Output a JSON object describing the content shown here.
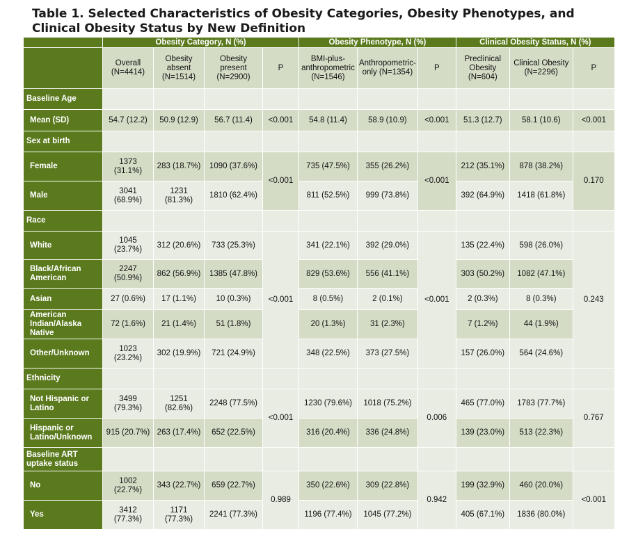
{
  "title_line1": "Table 1. Selected Characteristics of Obesity Categories, Obesity Phenotypes, and",
  "title_line2": "Clinical Obesity Status by New Definition",
  "groups": {
    "category": "Obesity Category, N (%)",
    "phenotype": "Obesity Phenotype, N (%)",
    "clinical": "Clinical Obesity Status, N (%)"
  },
  "columns": {
    "overall": "Overall (N=4414)",
    "absent": "Obesity absent (N=1514)",
    "present": "Obesity present (N=2900)",
    "p1": "P",
    "bmi_plus": "BMI-plus-anthropometric (N=1546)",
    "anthro_only": "Anthropometric-only (N=1354)",
    "p2": "P",
    "preclinical": "Preclinical Obesity (N=604)",
    "clinical": "Clinical Obesity (N=2296)",
    "p3": "P"
  },
  "sections": {
    "age": "Baseline Age",
    "sex": "Sex at birth",
    "race": "Race",
    "ethnicity": "Ethnicity",
    "art": "Baseline ART uptake status"
  },
  "rows": {
    "mean": {
      "label": "Mean (SD)",
      "overall": "54.7 (12.2)",
      "absent": "50.9 (12.9)",
      "present": "56.7 (11.4)",
      "p1": "<0.001",
      "bmi": "54.8 (11.4)",
      "anthro": "58.9 (10.9)",
      "p2": "<0.001",
      "pre": "51.3 (12.7)",
      "clin": "58.1 (10.6)",
      "p3": "<0.001"
    },
    "female": {
      "label": "Female",
      "overall": "1373 (31.1%)",
      "absent": "283 (18.7%)",
      "present": "1090 (37.6%)",
      "bmi": "735 (47.5%)",
      "anthro": "355 (26.2%)",
      "pre": "212 (35.1%)",
      "clin": "878 (38.2%)"
    },
    "male": {
      "label": "Male",
      "overall": "3041 (68.9%)",
      "absent": "1231 (81.3%)",
      "present": "1810 (62.4%)",
      "bmi": "811 (52.5%)",
      "anthro": "999 (73.8%)",
      "pre": "392 (64.9%)",
      "clin": "1418 (61.8%)"
    },
    "sex_p": {
      "p1": "<0.001",
      "p2": "<0.001",
      "p3": "0.170"
    },
    "white": {
      "label": "White",
      "overall": "1045 (23.7%)",
      "absent": "312 (20.6%)",
      "present": "733 (25.3%)",
      "bmi": "341 (22.1%)",
      "anthro": "392 (29.0%)",
      "pre": "135 (22.4%)",
      "clin": "598 (26.0%)"
    },
    "black": {
      "label": "Black/African American",
      "overall": "2247 (50.9%)",
      "absent": "862 (56.9%)",
      "present": "1385 (47.8%)",
      "bmi": "829 (53.6%)",
      "anthro": "556 (41.1%)",
      "pre": "303 (50.2%)",
      "clin": "1082 (47.1%)"
    },
    "asian": {
      "label": "Asian",
      "overall": "27 (0.6%)",
      "absent": "17 (1.1%)",
      "present": "10 (0.3%)",
      "bmi": "8 (0.5%)",
      "anthro": "2 (0.1%)",
      "pre": "2 (0.3%)",
      "clin": "8 (0.3%)"
    },
    "amind": {
      "label": "American Indian/Alaska Native",
      "overall": "72 (1.6%)",
      "absent": "21 (1.4%)",
      "present": "51 (1.8%)",
      "bmi": "20 (1.3%)",
      "anthro": "31 (2.3%)",
      "pre": "7 (1.2%)",
      "clin": "44 (1.9%)"
    },
    "other": {
      "label": "Other/Unknown",
      "overall": "1023 (23.2%)",
      "absent": "302 (19.9%)",
      "present": "721 (24.9%)",
      "bmi": "348 (22.5%)",
      "anthro": "373 (27.5%)",
      "pre": "157 (26.0%)",
      "clin": "564 (24.6%)"
    },
    "race_p": {
      "p1": "<0.001",
      "p2": "<0.001",
      "p3": "0.243"
    },
    "nothisp": {
      "label": "Not Hispanic or Latino",
      "overall": "3499 (79.3%)",
      "absent": "1251 (82.6%)",
      "present": "2248 (77.5%)",
      "bmi": "1230 (79.6%)",
      "anthro": "1018 (75.2%)",
      "pre": "465 (77.0%)",
      "clin": "1783 (77.7%)"
    },
    "hisp": {
      "label": "Hispanic or Latino/Unknown",
      "overall": "915 (20.7%)",
      "absent": "263 (17.4%)",
      "present": "652 (22.5%)",
      "bmi": "316 (20.4%)",
      "anthro": "336 (24.8%)",
      "pre": "139 (23.0%)",
      "clin": "513 (22.3%)"
    },
    "eth_p": {
      "p1": "<0.001",
      "p2": "0.006",
      "p3": "0.767"
    },
    "no": {
      "label": "No",
      "overall": "1002 (22.7%)",
      "absent": "343 (22.7%)",
      "present": "659 (22.7%)",
      "bmi": "350 (22.6%)",
      "anthro": "309 (22.8%)",
      "pre": "199 (32.9%)",
      "clin": "460 (20.0%)"
    },
    "yes": {
      "label": "Yes",
      "overall": "3412 (77.3%)",
      "absent": "1171 (77.3%)",
      "present": "2241 (77.3%)",
      "bmi": "1196 (77.4%)",
      "anthro": "1045 (77.2%)",
      "pre": "405 (67.1%)",
      "clin": "1836 (80.0%)"
    },
    "art_p": {
      "p1": "0.989",
      "p2": "0.942",
      "p3": "<0.001"
    }
  },
  "colors": {
    "header_green": "#5b7a1e",
    "cell_dark": "#d4dcc6",
    "cell_light": "#e8ece2"
  }
}
